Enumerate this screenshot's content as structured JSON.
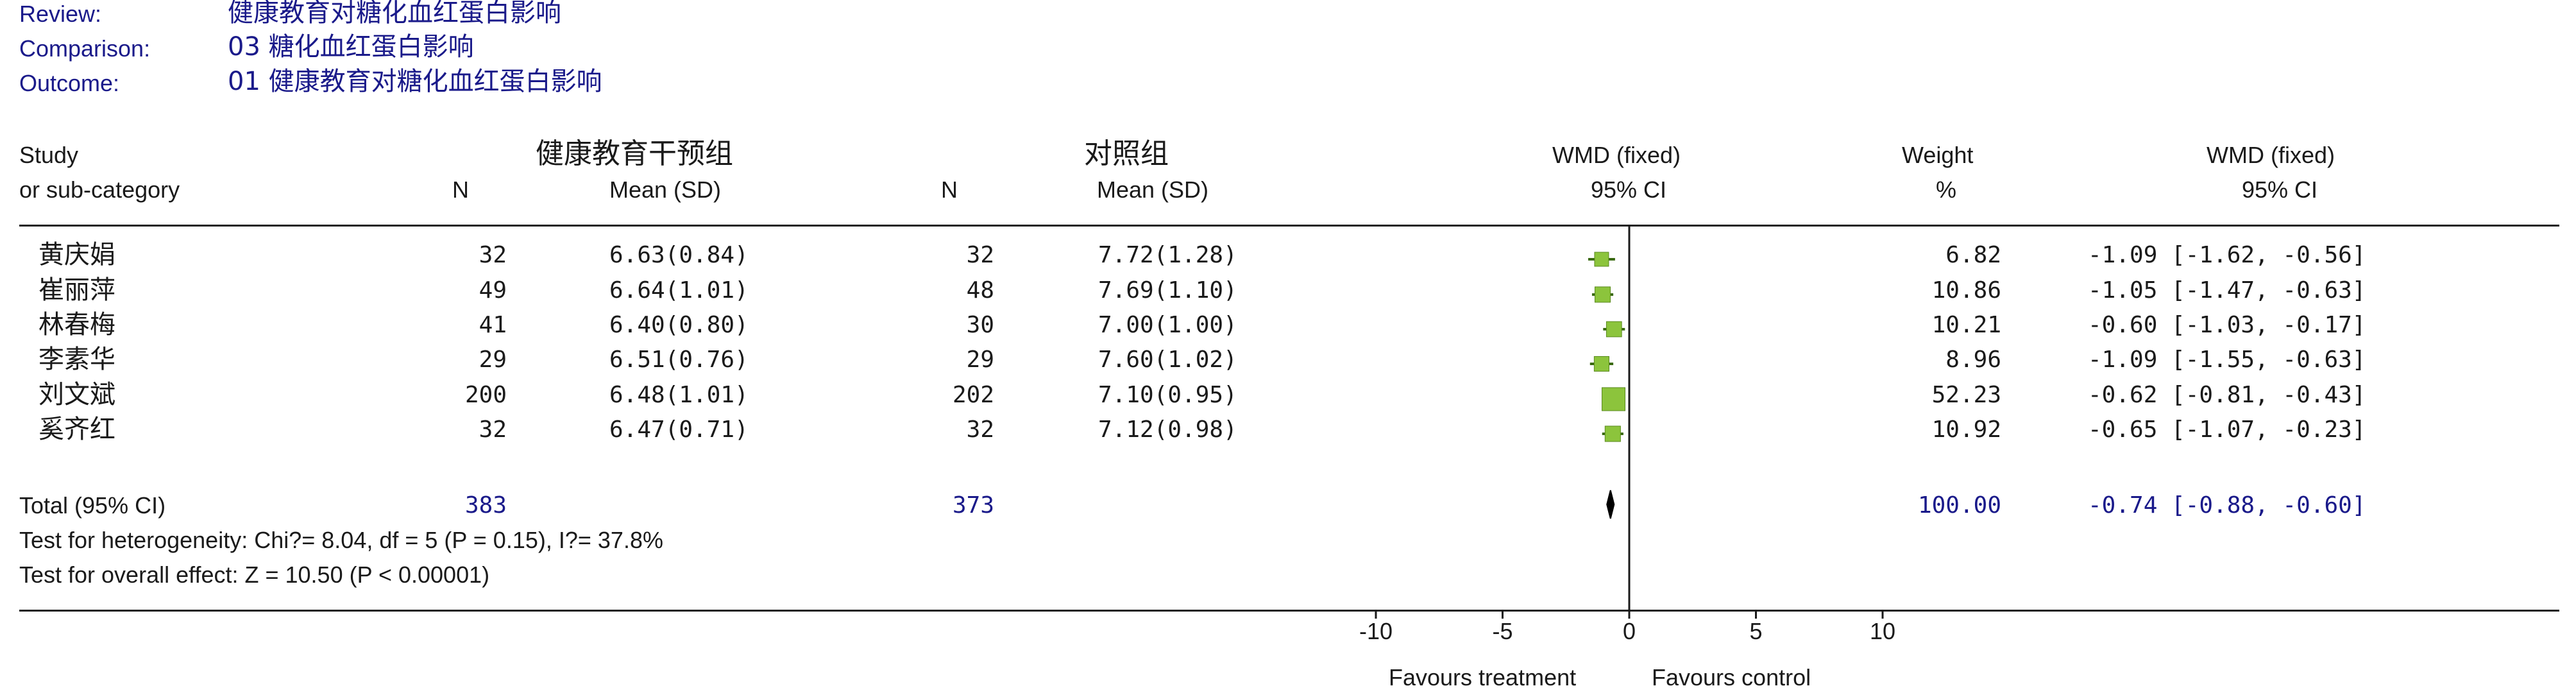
{
  "meta": {
    "review_label": "Review:",
    "review_value": "健康教育对糖化血红蛋白影响",
    "comparison_label": "Comparison:",
    "comparison_value": "03 糖化血红蛋白影响",
    "outcome_label": "Outcome:",
    "outcome_value": "01 健康教育对糖化血红蛋白影响"
  },
  "headers": {
    "study_line1": "Study",
    "study_line2": "or sub-category",
    "group1": "健康教育干预组",
    "group2": "对照组",
    "n": "N",
    "mean_sd": "Mean (SD)",
    "wmd_line1": "WMD (fixed)",
    "wmd_line2": "95% CI",
    "weight_line1": "Weight",
    "weight_line2": "%",
    "wmd2_line1": "WMD (fixed)",
    "wmd2_line2": "95% CI"
  },
  "studies": [
    {
      "name": "黄庆娟",
      "n1": "32",
      "ms1": "6.63(0.84)",
      "n2": "32",
      "ms2": "7.72(1.28)",
      "weight": "6.82",
      "ci": "-1.09 [-1.62, -0.56]"
    },
    {
      "name": "崔丽萍",
      "n1": "49",
      "ms1": "6.64(1.01)",
      "n2": "48",
      "ms2": "7.69(1.10)",
      "weight": "10.86",
      "ci": "-1.05 [-1.47, -0.63]"
    },
    {
      "name": "林春梅",
      "n1": "41",
      "ms1": "6.40(0.80)",
      "n2": "30",
      "ms2": "7.00(1.00)",
      "weight": "10.21",
      "ci": "-0.60 [-1.03, -0.17]"
    },
    {
      "name": "李素华",
      "n1": "29",
      "ms1": "6.51(0.76)",
      "n2": "29",
      "ms2": "7.60(1.02)",
      "weight": "8.96",
      "ci": "-1.09 [-1.55, -0.63]"
    },
    {
      "name": "刘文斌",
      "n1": "200",
      "ms1": "6.48(1.01)",
      "n2": "202",
      "ms2": "7.10(0.95)",
      "weight": "52.23",
      "ci": "-0.62 [-0.81, -0.43]"
    },
    {
      "name": "奚齐红",
      "n1": "32",
      "ms1": "6.47(0.71)",
      "n2": "32",
      "ms2": "7.12(0.98)",
      "weight": "10.92",
      "ci": "-0.65 [-1.07, -0.23]"
    }
  ],
  "total": {
    "label": "Total (95% CI)",
    "n1": "383",
    "n2": "373",
    "weight": "100.00",
    "ci": "-0.74 [-0.88, -0.60]"
  },
  "tests": {
    "heterogeneity": "Test for heterogeneity: Chi?= 8.04, df = 5 (P = 0.15), I?= 37.8%",
    "overall": "Test for overall effect: Z = 10.50 (P < 0.00001)"
  },
  "axis": {
    "favours_left": "Favours treatment",
    "favours_right": "Favours control"
  },
  "colors": {
    "text": "#1a1a1a",
    "meta_blue": "#1a1a8a",
    "marker_green": "#8cc43c",
    "marker_edge": "#5a8a1e",
    "line_green": "#3a6a10"
  },
  "chart_data": {
    "type": "forest",
    "xlim": [
      -10,
      10
    ],
    "ticks": [
      -10,
      -5,
      0,
      5,
      10
    ],
    "tick_labels": [
      "-10",
      "-5",
      "0",
      "5",
      "10"
    ],
    "studies": [
      {
        "name": "黄庆娟",
        "effect": -1.09,
        "lower": -1.62,
        "upper": -0.56,
        "weight": 6.82
      },
      {
        "name": "崔丽萍",
        "effect": -1.05,
        "lower": -1.47,
        "upper": -0.63,
        "weight": 10.86
      },
      {
        "name": "林春梅",
        "effect": -0.6,
        "lower": -1.03,
        "upper": -0.17,
        "weight": 10.21
      },
      {
        "name": "李素华",
        "effect": -1.09,
        "lower": -1.55,
        "upper": -0.63,
        "weight": 8.96
      },
      {
        "name": "刘文斌",
        "effect": -0.62,
        "lower": -0.81,
        "upper": -0.43,
        "weight": 52.23
      },
      {
        "name": "奚齐红",
        "effect": -0.65,
        "lower": -1.07,
        "upper": -0.23,
        "weight": 10.92
      }
    ],
    "pooled": {
      "effect": -0.74,
      "lower": -0.88,
      "upper": -0.6
    }
  }
}
